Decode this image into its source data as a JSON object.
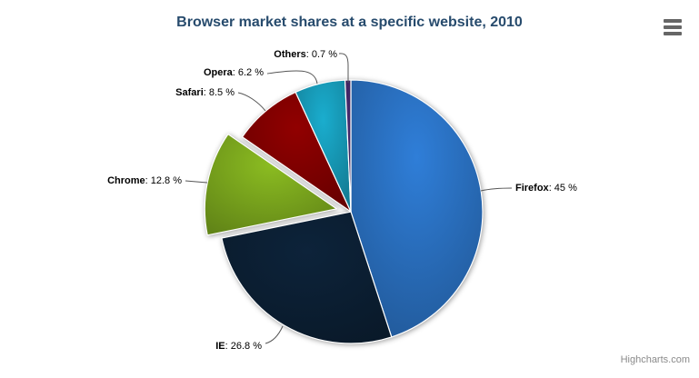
{
  "chart": {
    "credits_text": "Highcharts.com"
  },
  "icons": {
    "context_menu": "hamburger-icon"
  },
  "colors": {
    "title": "#274b6d",
    "label_text": "#000000",
    "connector": "#555555",
    "menu_icon": "#666666",
    "credits": "#8a8a8a",
    "background": "#ffffff"
  },
  "chart_data": {
    "type": "pie",
    "title": "Browser market shares at a specific website, 2010",
    "legend": false,
    "start_angle_deg": 0,
    "direction": "clockwise",
    "label_separator": ": ",
    "label_unit": " %",
    "points": [
      {
        "name": "Firefox",
        "percent": 45,
        "color": "#2f7ed8",
        "sliced": false
      },
      {
        "name": "IE",
        "percent": 26.8,
        "color": "#0d233a",
        "sliced": false
      },
      {
        "name": "Chrome",
        "percent": 12.8,
        "color": "#8bbc21",
        "sliced": true
      },
      {
        "name": "Safari",
        "percent": 8.5,
        "color": "#910000",
        "sliced": false
      },
      {
        "name": "Opera",
        "percent": 6.2,
        "color": "#1aadce",
        "sliced": false
      },
      {
        "name": "Others",
        "percent": 0.7,
        "color": "#492970",
        "sliced": false
      }
    ]
  }
}
